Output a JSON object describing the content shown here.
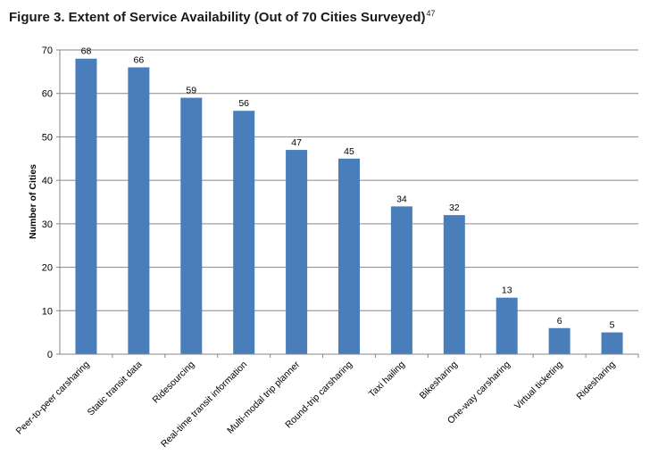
{
  "figure": {
    "title": "Figure 3. Extent of Service Availability (Out of 70 Cities Surveyed)",
    "footnote": "47"
  },
  "chart_data": {
    "type": "bar",
    "title": "Figure 3. Extent of Service Availability (Out of 70 Cities Surveyed)",
    "xlabel": "",
    "ylabel": "Number of Cities",
    "ylim": [
      0,
      70
    ],
    "yticks": [
      0,
      10,
      20,
      30,
      40,
      50,
      60,
      70
    ],
    "grid": true,
    "legend": "none",
    "bar_color": "#4a7ebb",
    "categories": [
      "Peer-to-peer carsharing",
      "Static transit data",
      "Ridesourcing",
      "Real-time transit information",
      "Multi-modal trip planner",
      "Round-trip carsharing",
      "Taxi hailing",
      "Bikesharing",
      "One-way carsharing",
      "Virtual ticketing",
      "Ridesharing"
    ],
    "values": [
      68,
      66,
      59,
      56,
      47,
      45,
      34,
      32,
      13,
      6,
      5
    ]
  }
}
